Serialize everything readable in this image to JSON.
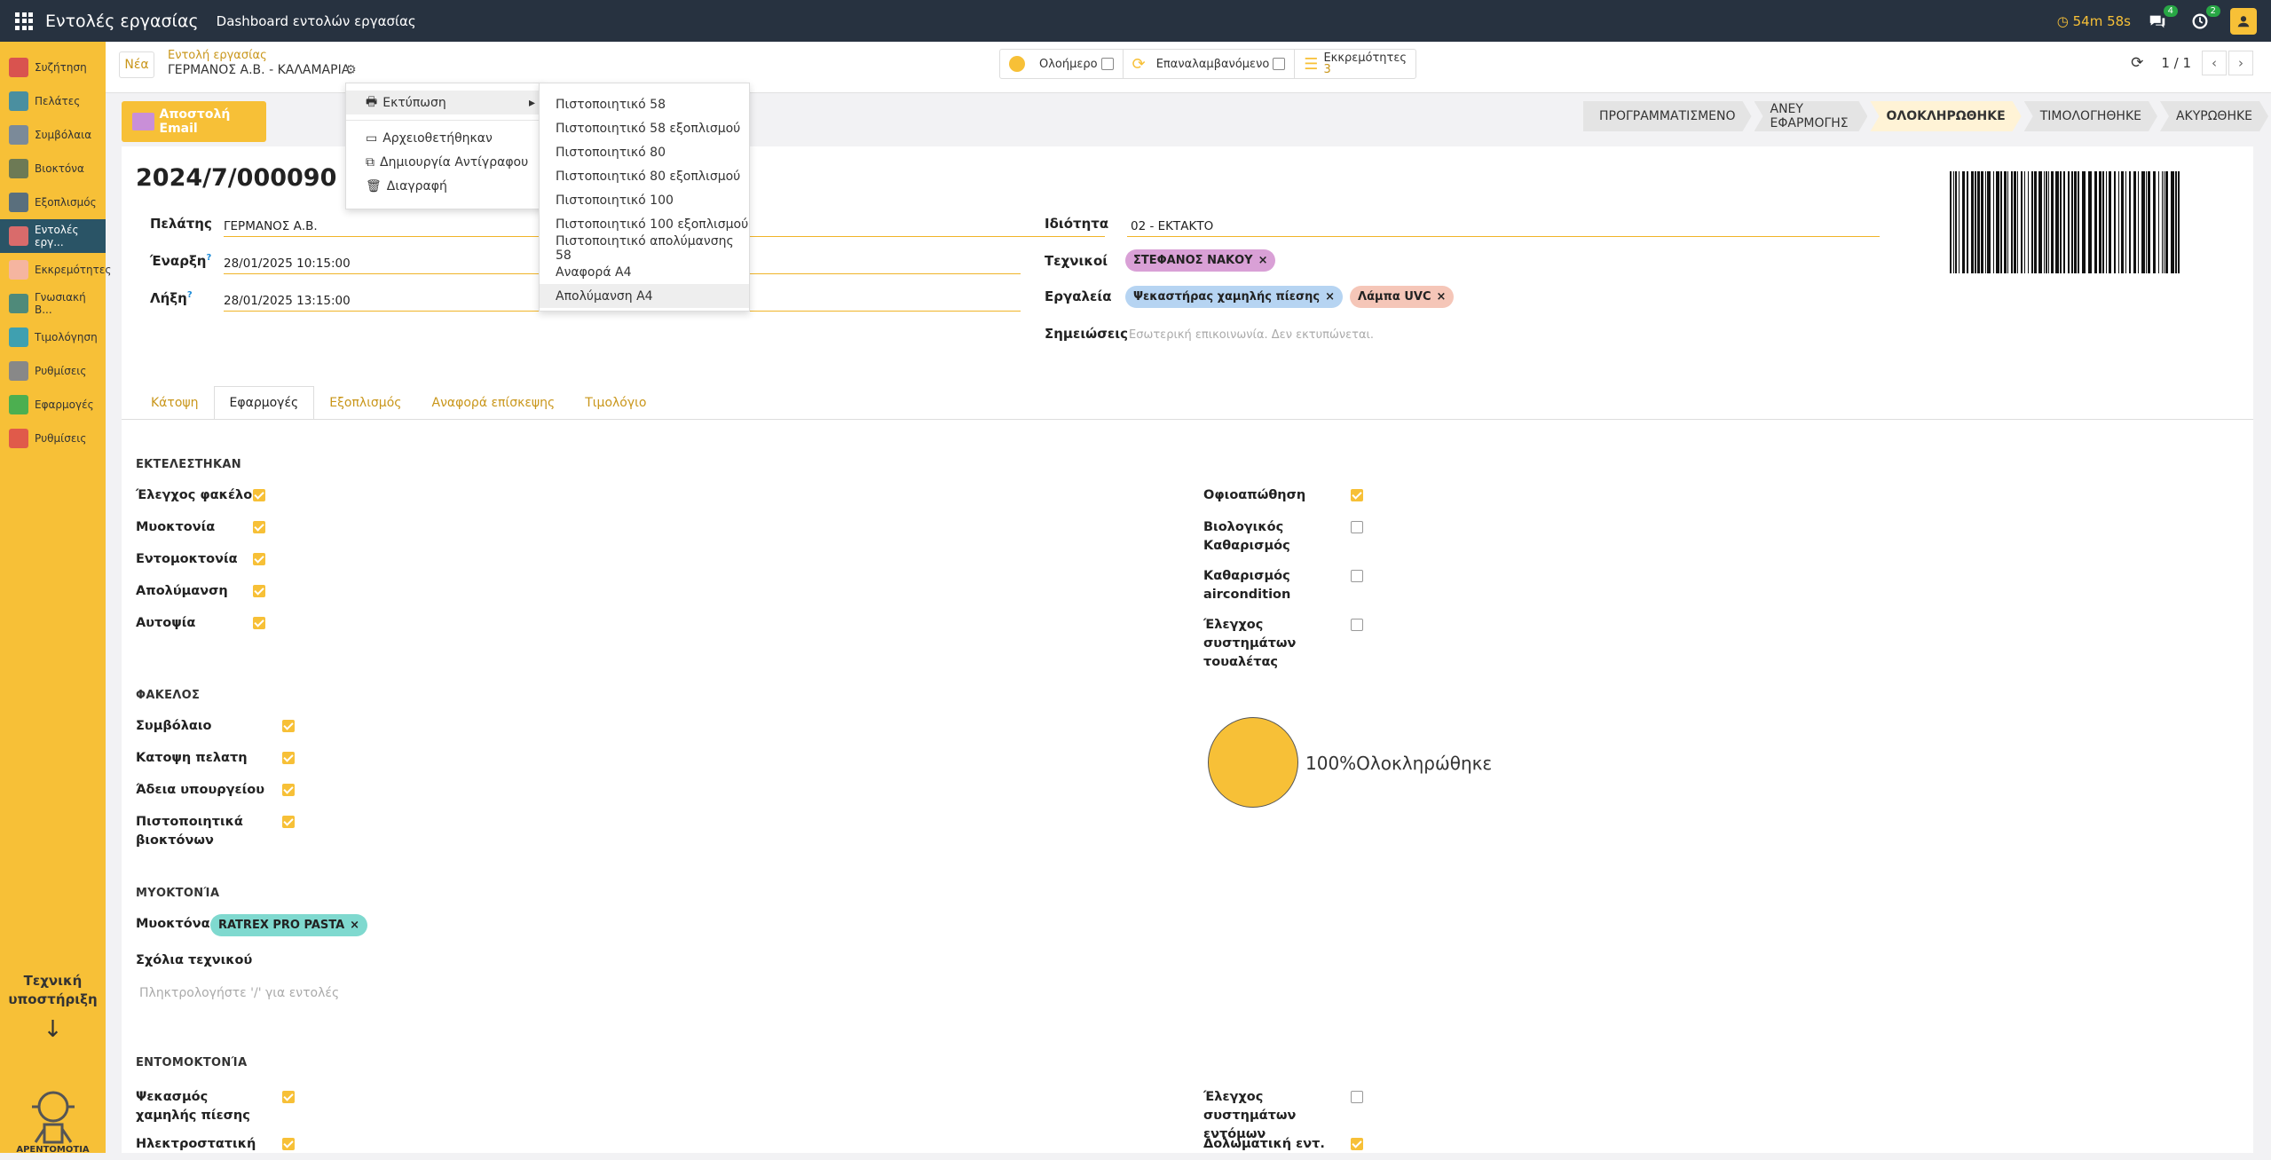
{
  "topbar": {
    "app_title": "Εντολές εργασίας",
    "dashboard": "Dashboard εντολών εργασίας",
    "timer": "54m 58s",
    "chat_badge": "4",
    "activity_badge": "2"
  },
  "sidebar": {
    "items": [
      {
        "label": "Συζήτηση",
        "color": "#d9534f"
      },
      {
        "label": "Πελάτες",
        "color": "#4a8fa0"
      },
      {
        "label": "Συμβόλαια",
        "color": "#7b8a99"
      },
      {
        "label": "Βιοκτόνα",
        "color": "#6d7a55"
      },
      {
        "label": "Εξοπλισμός",
        "color": "#5a6f7d"
      },
      {
        "label": "Εντολές εργ...",
        "color": "#d96b6b"
      },
      {
        "label": "Εκκρεμότητες",
        "color": "#f5b5a0"
      },
      {
        "label": "Γνωσιακή Β...",
        "color": "#4f8a7a"
      },
      {
        "label": "Τιμολόγηση",
        "color": "#3fa0b0"
      },
      {
        "label": "Ρυθμίσεις",
        "color": "#888"
      },
      {
        "label": "Εφαρμογές",
        "color": "#4caf50"
      },
      {
        "label": "Ρυθμίσεις",
        "color": "#e05a4a"
      }
    ],
    "support": "Τεχνική υποστήριξη",
    "logo_text": "ΑΡΕΝΤΟΜΟΤΙΑ"
  },
  "control": {
    "new": "Νέα",
    "breadcrumb_parent": "Εντολή εργασίας",
    "breadcrumb_current": "ΓΕΡΜΑΝΟΣ Α.Β. - ΚΑΛΑΜΑΡΙΑ",
    "filter1": "Ολοήμερο",
    "filter2": "Επαναλαμβανόμενο",
    "filter3": "Εκκρεμότητες",
    "filter3_count": "3",
    "pager": "1 / 1"
  },
  "actions": {
    "print": "Εκτύπωση",
    "archive": "Αρχειοθετήθηκαν",
    "duplicate": "Δημιουργία Αντίγραφου",
    "delete": "Διαγραφή"
  },
  "print_menu": [
    "Πιστοποιητικό 58",
    "Πιστοποιητικό 58 εξοπλισμού",
    "Πιστοποιητικό 80",
    "Πιστοποιητικό 80 εξοπλισμού",
    "Πιστοποιητικό 100",
    "Πιστοποιητικό 100 εξοπλισμού",
    "Πιστοποιητικό απολύμανσης 58",
    "Αναφορά Α4",
    "Απολύμανση Α4"
  ],
  "send_email": "Αποστολή Email",
  "status": [
    "ΠΡΟΓΡΑΜΜΑΤΙΣΜΕΝΟ",
    "ΑΝΕΥ ΕΦΑΡΜΟΓΗΣ",
    "ΟΛΟΚΛΗΡΩΘΗΚΕ",
    "ΤΙΜΟΛΟΓΗΘΗΚΕ",
    "ΑΚΥΡΩΘΗΚΕ"
  ],
  "record": {
    "name": "2024/7/000090",
    "customer_label": "Πελάτης",
    "customer": "ΓΕΡΜΑΝΟΣ Α.Β.",
    "start_label": "Έναρξη",
    "start": "28/01/2025 10:15:00",
    "end_label": "Λήξη",
    "end": "28/01/2025 13:15:00",
    "priority_label": "Ιδιότητα",
    "priority": "02 - ΕΚΤΑΚΤΟ",
    "tech_label": "Τεχνικοί",
    "tech": "ΣΤΕΦΑΝΟΣ ΝΑΚΟΥ",
    "tools_label": "Εργαλεία",
    "tool1": "Ψεκαστήρας χαμηλής πίεσης",
    "tool2": "Λάμπα UVC",
    "notes_label": "Σημειώσεις",
    "notes_placeholder": "Εσωτερική επικοινωνία. Δεν εκτυπώνεται."
  },
  "tabs": [
    "Κάτοψη",
    "Εφαρμογές",
    "Εξοπλισμός",
    "Αναφορά επίσκεψης",
    "Τιμολόγιο"
  ],
  "executed": {
    "title": "ΕΚΤΕΛΕΣΤΗΚΑΝ",
    "left": [
      "Έλεγχος φακέλου",
      "Μυοκτονία",
      "Εντομοκτονία",
      "Απολύμανση",
      "Αυτοψία"
    ],
    "right": [
      "Οφιοαπώθηση",
      "Βιολογικός Καθαρισμός",
      "Καθαρισμός aircondition",
      "Έλεγχος συστημάτων τουαλέτας"
    ]
  },
  "folder": {
    "title": "ΦΑΚΕΛΟΣ",
    "items": [
      "Συμβόλαιο",
      "Κατοψη πελατη",
      "Άδεια υπουργείου",
      "Πιστοποιητικά βιοκτόνων"
    ],
    "progress": "100%Ολοκληρώθηκε",
    "progress_value": 100
  },
  "rodent": {
    "title": "ΜΥΟΚΤΟΝΊΑ",
    "bait_label": "Μυοκτόνα",
    "bait": "RATREX PRO PASTA",
    "comments_label": "Σχόλια τεχνικού",
    "comments_placeholder": "Πληκτρολογήστε '/' για εντολές"
  },
  "insect": {
    "title": "ΕΝΤΟΜΟΚΤΟΝΊΑ",
    "left1": "Ψεκασμός χαμηλής πίεσης",
    "left2": "Ηλεκτροστατική",
    "right1": "Έλεγχος συστημάτων εντόμων",
    "right2": "Δολωματική εντ."
  }
}
